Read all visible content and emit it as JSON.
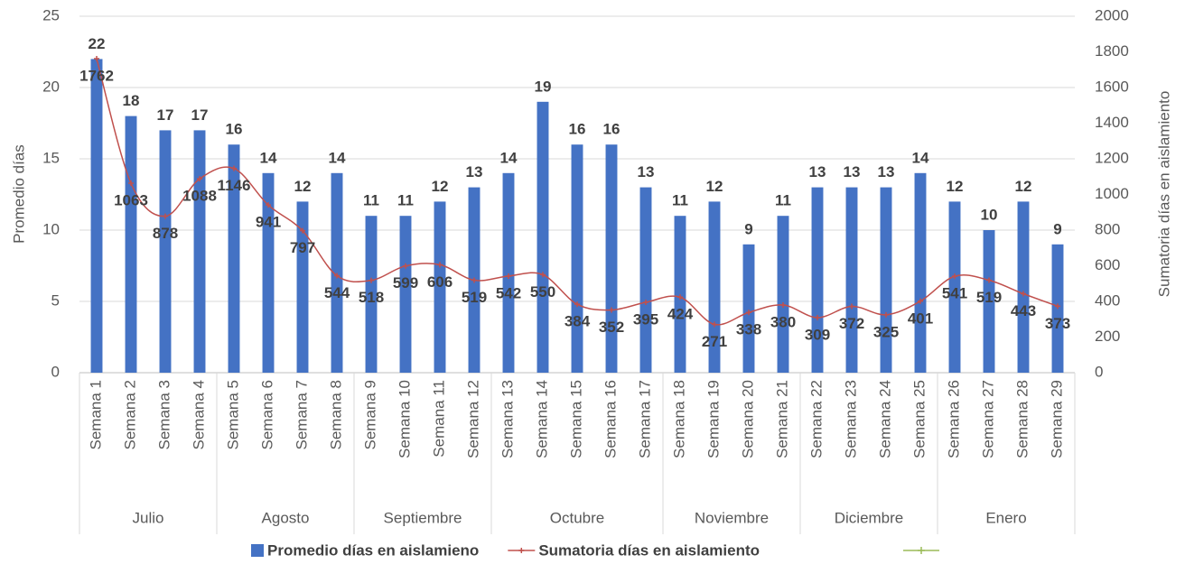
{
  "chart_data": {
    "type": "bar-line",
    "groups": [
      {
        "name": "Julio",
        "categories": [
          "Semana 1",
          "Semana 2",
          "Semana 3",
          "Semana 4"
        ]
      },
      {
        "name": "Agosto",
        "categories": [
          "Semana 5",
          "Semana 6",
          "Semana 7",
          "Semana 8"
        ]
      },
      {
        "name": "Septiembre",
        "categories": [
          "Semana 9",
          "Semana 10",
          "Semana 11",
          "Semana 12"
        ]
      },
      {
        "name": "Octubre",
        "categories": [
          "Semana 13",
          "Semana 14",
          "Semana 15",
          "Semana 16",
          "Semana 17"
        ]
      },
      {
        "name": "Noviembre",
        "categories": [
          "Semana 18",
          "Semana 19",
          "Semana 20",
          "Semana 21"
        ]
      },
      {
        "name": "Diciembre",
        "categories": [
          "Semana 22",
          "Semana 23",
          "Semana 24",
          "Semana 25"
        ]
      },
      {
        "name": "Enero",
        "categories": [
          "Semana 26",
          "Semana 27",
          "Semana 28",
          "Semana 29"
        ]
      }
    ],
    "series": [
      {
        "name": "Promedio días en aislamieno",
        "type": "bar",
        "color": "#4472c4",
        "axis": "y",
        "values": [
          22,
          18,
          17,
          17,
          16,
          14,
          12,
          14,
          11,
          11,
          12,
          13,
          14,
          19,
          16,
          16,
          13,
          11,
          12,
          9,
          11,
          13,
          13,
          13,
          14,
          12,
          10,
          12,
          9
        ]
      },
      {
        "name": "Sumatoria días en aislamiento",
        "type": "line",
        "color": "#c0504d",
        "axis": "y2",
        "values": [
          1762,
          1063,
          878,
          1088,
          1146,
          941,
          797,
          544,
          518,
          599,
          606,
          519,
          542,
          550,
          384,
          352,
          395,
          424,
          271,
          338,
          380,
          309,
          372,
          325,
          401,
          541,
          519,
          443,
          373
        ]
      }
    ],
    "ylabel": "Promedio días",
    "y2label": "Sumatoria días en aislamiento",
    "ylim": [
      0,
      25
    ],
    "yticks": [
      0,
      5,
      10,
      15,
      20,
      25
    ],
    "y2lim": [
      0,
      2000
    ],
    "y2ticks": [
      0,
      200,
      400,
      600,
      800,
      1000,
      1200,
      1400,
      1600,
      1800,
      2000
    ],
    "grid": true
  }
}
